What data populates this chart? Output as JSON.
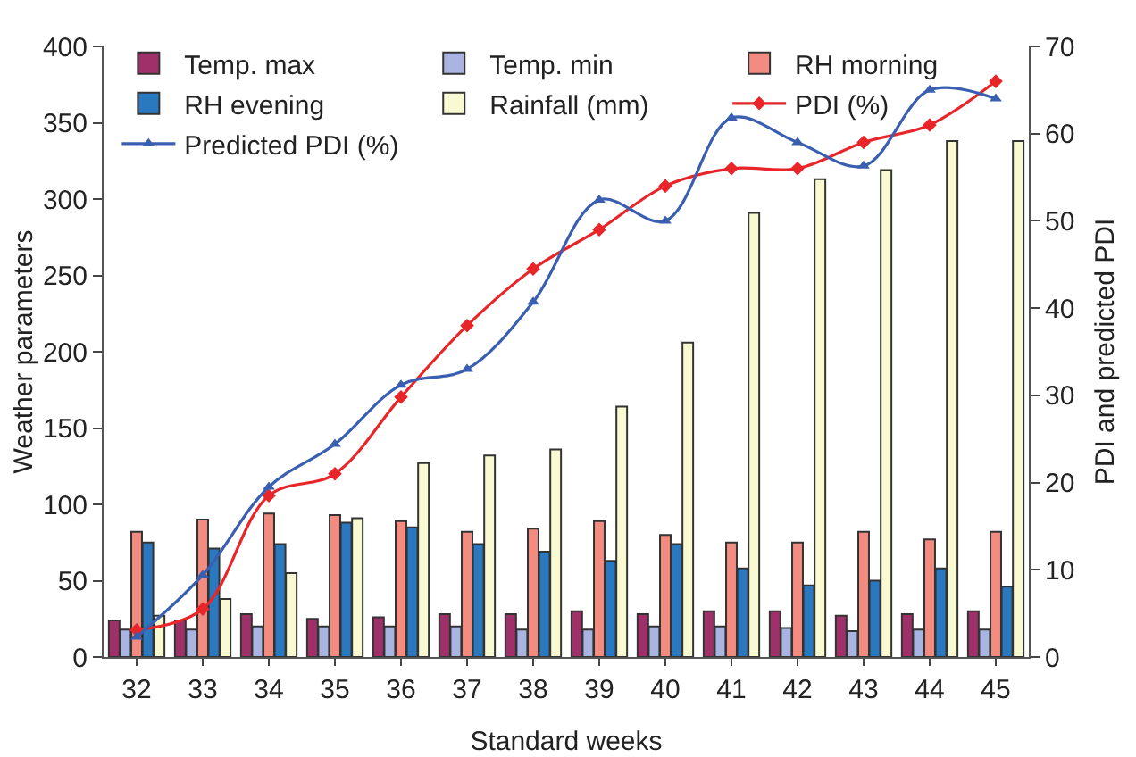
{
  "chart_data": {
    "type": "bar",
    "xlabel": "Standard weeks",
    "ylabel": "Weather parameters",
    "y2label": "PDI and predicted PDI",
    "categories": [
      "32",
      "33",
      "34",
      "35",
      "36",
      "37",
      "38",
      "39",
      "40",
      "41",
      "42",
      "43",
      "44",
      "45"
    ],
    "series": [
      {
        "name": "Temp. max",
        "color": "#a0306a",
        "values": [
          24,
          24,
          28,
          25,
          26,
          28,
          28,
          30,
          28,
          30,
          30,
          27,
          28,
          30
        ]
      },
      {
        "name": "Temp. min",
        "color": "#a9b4e0",
        "values": [
          18,
          18,
          20,
          20,
          20,
          20,
          18,
          18,
          20,
          20,
          19,
          17,
          18,
          18
        ]
      },
      {
        "name": "RH morning",
        "color": "#f28b80",
        "values": [
          82,
          90,
          94,
          93,
          89,
          82,
          84,
          89,
          80,
          75,
          75,
          82,
          77,
          82
        ]
      },
      {
        "name": "RH evening",
        "color": "#2a78c0",
        "values": [
          75,
          71,
          74,
          88,
          85,
          74,
          69,
          63,
          74,
          58,
          47,
          50,
          58,
          46
        ]
      },
      {
        "name": "Rainfall (mm)",
        "color": "#fafad2",
        "values": [
          27,
          38,
          55,
          91,
          127,
          132,
          136,
          164,
          206,
          291,
          313,
          319,
          338,
          338
        ]
      },
      {
        "name": "PDI (%)",
        "type": "line",
        "axis": "y2",
        "marker": "diamond",
        "color": "#e8262a",
        "values": [
          3.1,
          5.5,
          18.5,
          21,
          29.8,
          38,
          44.5,
          49,
          54,
          56,
          56,
          59,
          61,
          66
        ]
      },
      {
        "name": "Predicted PDI (%)",
        "type": "line",
        "axis": "y2",
        "marker": "triangle",
        "color": "#3a5fb0",
        "values": [
          2.3,
          9.4,
          19.5,
          24.4,
          31.2,
          33,
          40.7,
          52.4,
          50,
          61.8,
          59,
          56.3,
          65,
          64
        ]
      }
    ],
    "ylim": [
      0,
      400
    ],
    "yticks": [
      0,
      50,
      100,
      150,
      200,
      250,
      300,
      350,
      400
    ],
    "y2lim": [
      0,
      70
    ],
    "y2ticks": [
      0,
      10,
      20,
      30,
      40,
      50,
      60,
      70
    ],
    "grid": false,
    "legend": "top",
    "line_style": "solid"
  }
}
